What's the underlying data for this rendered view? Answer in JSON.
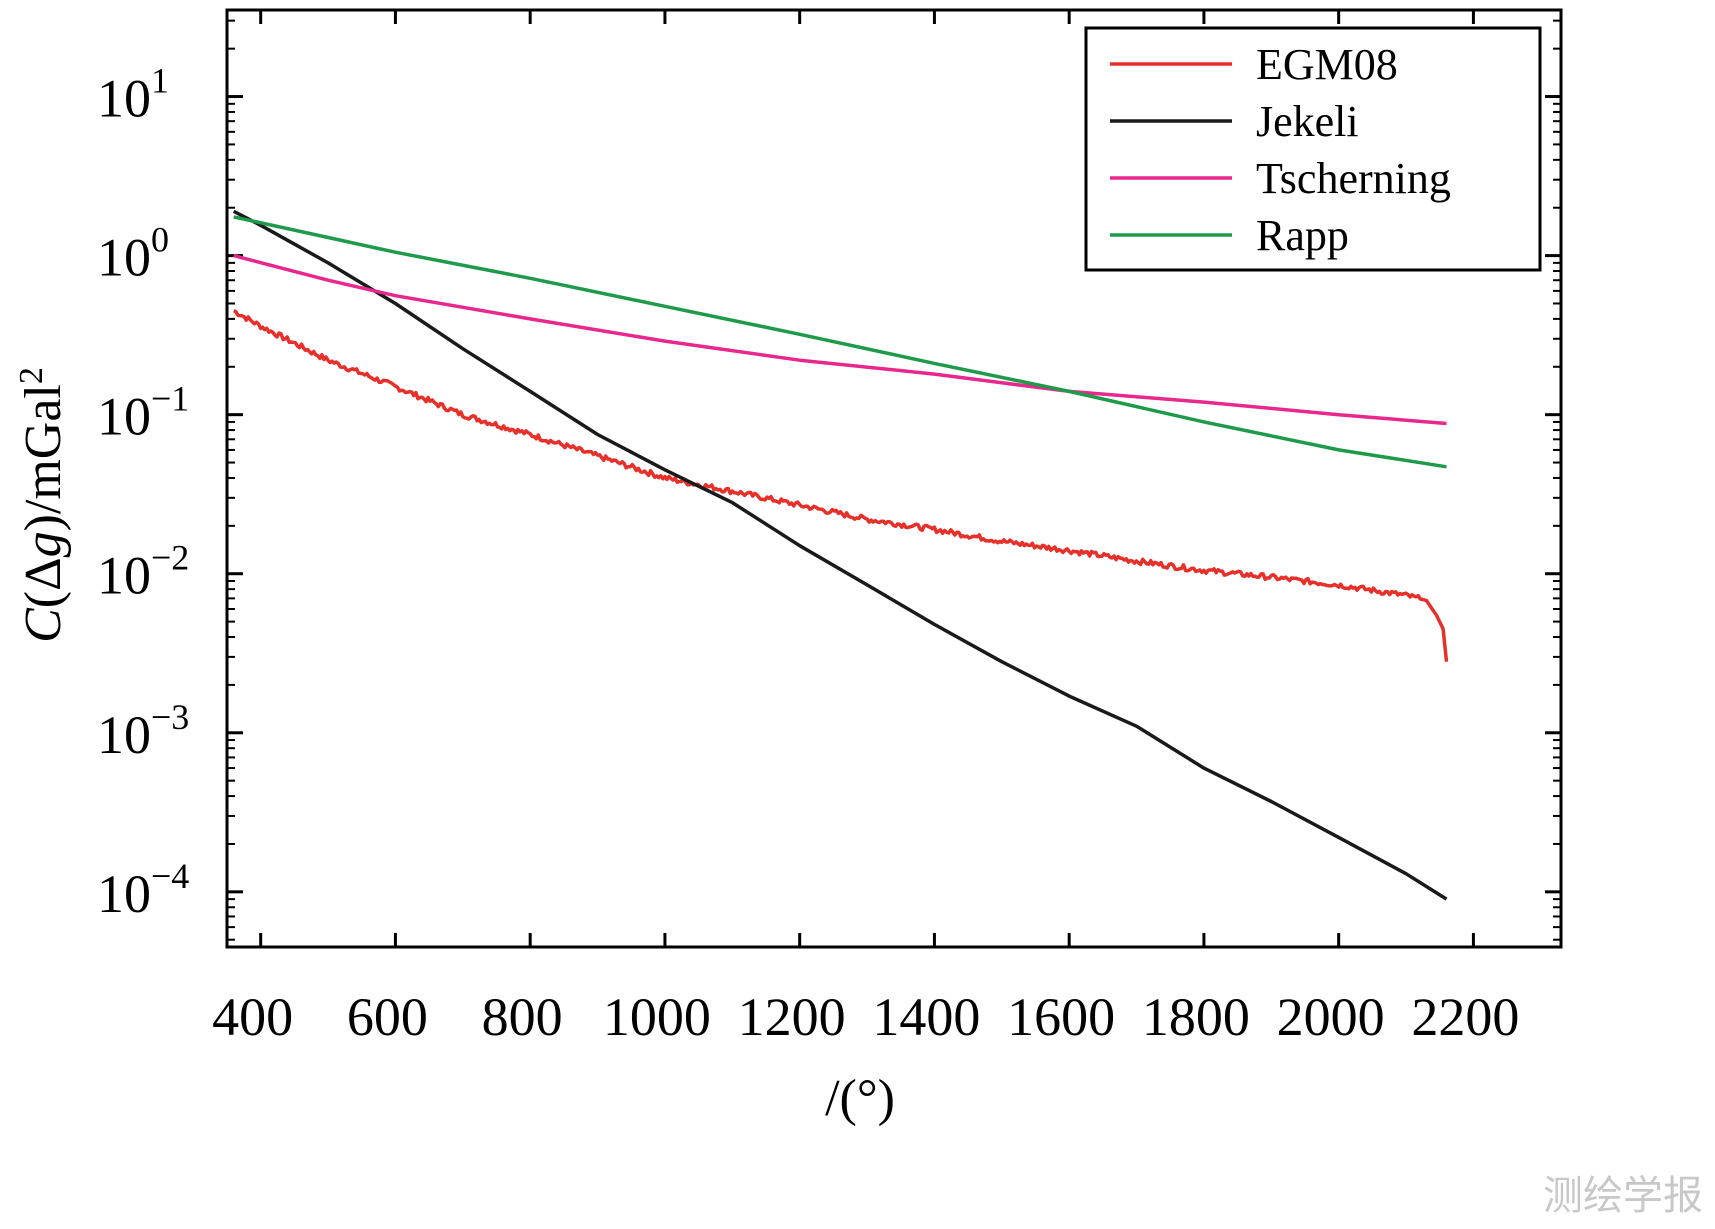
{
  "chart_data": {
    "type": "line",
    "title": "",
    "xlabel": "/(°)",
    "ylabel": "C(Δg)/mGal²",
    "ylabel_parts": {
      "italic": "C",
      "open": "(",
      "delta": "Δ",
      "var": "g",
      "rest": ")/mGal",
      "sup": "2"
    },
    "xlim": [
      350,
      2330
    ],
    "ylim": [
      4.5e-05,
      35
    ],
    "yscale": "log",
    "xticks": [
      400,
      600,
      800,
      1000,
      1200,
      1400,
      1600,
      1800,
      2000,
      2200
    ],
    "xtick_labels": [
      "400",
      "600",
      "800",
      "1000",
      "1200",
      "1400",
      "1600",
      "1800",
      "2000",
      "2200"
    ],
    "yticks": [
      {
        "value": 10,
        "base": "10",
        "exp": "1"
      },
      {
        "value": 1,
        "base": "10",
        "exp": "0"
      },
      {
        "value": 0.1,
        "base": "10",
        "exp": "−1"
      },
      {
        "value": 0.01,
        "base": "10",
        "exp": "−2"
      },
      {
        "value": 0.001,
        "base": "10",
        "exp": "−3"
      },
      {
        "value": 0.0001,
        "base": "10",
        "exp": "−4"
      }
    ],
    "legend_position": "top-right",
    "series": [
      {
        "name": "EGM08",
        "color": "#e8302a",
        "x": [
          360,
          400,
          500,
          600,
          700,
          800,
          900,
          1000,
          1100,
          1200,
          1300,
          1400,
          1500,
          1600,
          1700,
          1800,
          1900,
          2000,
          2100,
          2130,
          2145,
          2155,
          2160
        ],
        "y": [
          0.45,
          0.36,
          0.22,
          0.15,
          0.1,
          0.075,
          0.055,
          0.04,
          0.033,
          0.027,
          0.022,
          0.019,
          0.016,
          0.014,
          0.012,
          0.0105,
          0.0095,
          0.0085,
          0.0073,
          0.0068,
          0.0055,
          0.0045,
          0.0028
        ]
      },
      {
        "name": "Jekeli",
        "color": "#1a1a1a",
        "x": [
          360,
          400,
          500,
          600,
          700,
          800,
          900,
          1000,
          1100,
          1200,
          1300,
          1400,
          1500,
          1600,
          1700,
          1800,
          1900,
          2000,
          2100,
          2160
        ],
        "y": [
          1.9,
          1.55,
          0.9,
          0.5,
          0.26,
          0.14,
          0.075,
          0.045,
          0.028,
          0.015,
          0.0085,
          0.0048,
          0.0028,
          0.0017,
          0.0011,
          0.0006,
          0.00037,
          0.00022,
          0.00013,
          9e-05
        ]
      },
      {
        "name": "Tscherning",
        "color": "#e8288c",
        "x": [
          360,
          500,
          600,
          800,
          1000,
          1200,
          1400,
          1600,
          1800,
          2000,
          2160
        ],
        "y": [
          1.0,
          0.7,
          0.56,
          0.4,
          0.29,
          0.22,
          0.18,
          0.14,
          0.12,
          0.1,
          0.088
        ]
      },
      {
        "name": "Rapp",
        "color": "#1f9a4a",
        "x": [
          360,
          500,
          600,
          800,
          1000,
          1200,
          1400,
          1600,
          1800,
          2000,
          2160
        ],
        "y": [
          1.75,
          1.3,
          1.05,
          0.72,
          0.48,
          0.32,
          0.21,
          0.14,
          0.09,
          0.06,
          0.047
        ]
      }
    ]
  },
  "watermark": "测绘学报"
}
